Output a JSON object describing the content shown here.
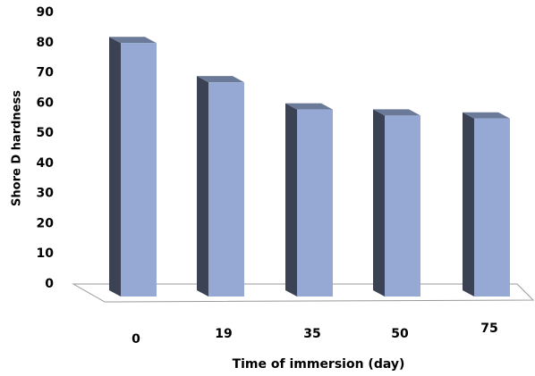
{
  "chart_data": {
    "type": "bar3d",
    "x_label": "Time of immersion (day)",
    "y_label": "Shore D hardness",
    "categories": [
      "0",
      "19",
      "35",
      "50",
      "75"
    ],
    "values": [
      84,
      71,
      62,
      60,
      59
    ],
    "color": "#95a9d4",
    "ylim": [
      0,
      90
    ],
    "yticks": [
      0,
      10,
      20,
      30,
      40,
      50,
      60,
      70,
      80,
      90
    ]
  }
}
